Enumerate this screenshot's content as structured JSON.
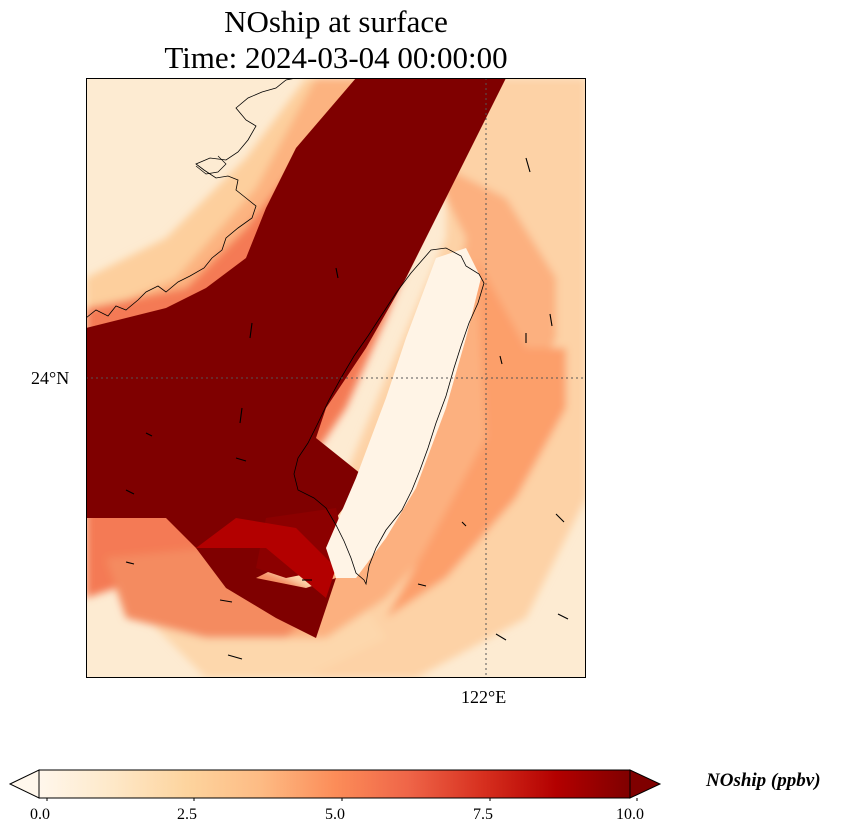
{
  "title_line1": "NOship at surface",
  "title_line2": "Time: 2024-03-04 00:00:00",
  "map": {
    "lat_tick": "24°N",
    "lon_tick": "122°E",
    "colormap": [
      "#fff7ec",
      "#fee8c8",
      "#fdd49e",
      "#fdbb84",
      "#fc8d59",
      "#ef6548",
      "#d7301f",
      "#b30000",
      "#7f0000"
    ]
  },
  "colorbar": {
    "label": "NOship (ppbv)",
    "ticks": [
      "0.0",
      "2.5",
      "5.0",
      "7.5",
      "10.0"
    ],
    "min": 0,
    "max": 10
  }
}
